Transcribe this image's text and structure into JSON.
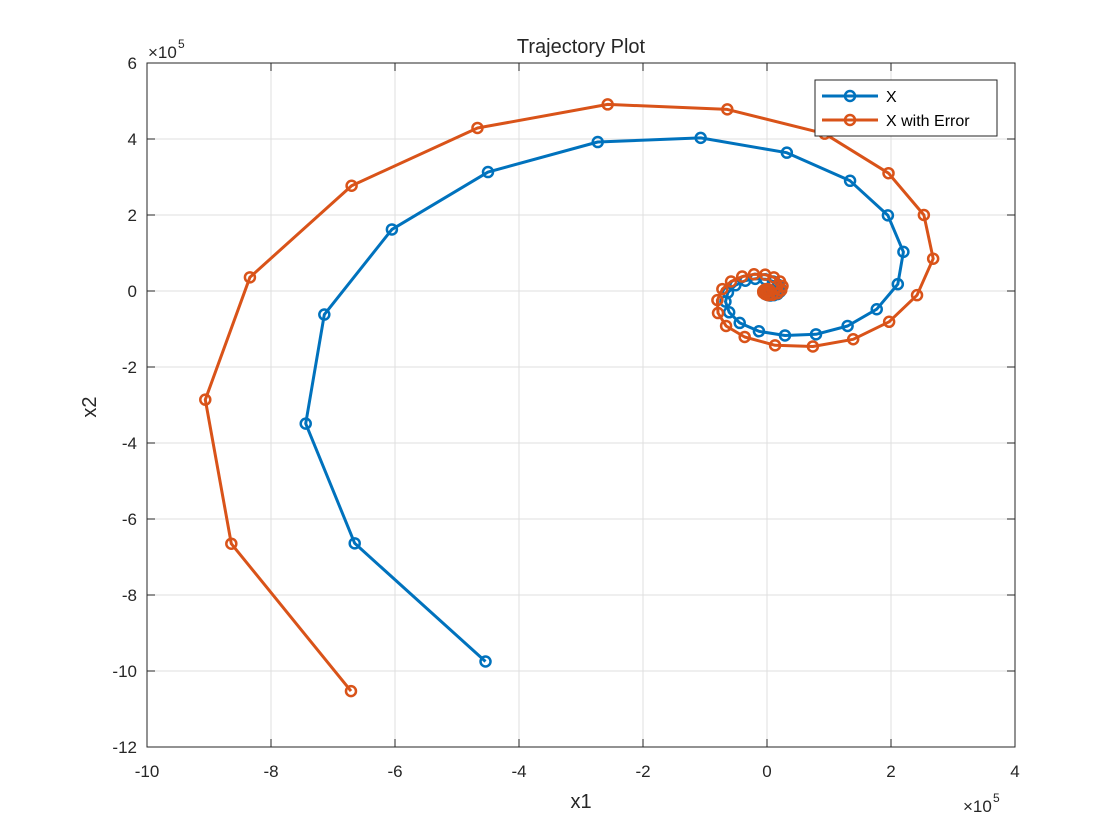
{
  "chart_data": {
    "type": "line",
    "title": "Trajectory Plot",
    "xlabel": "x1",
    "ylabel": "x2",
    "x_exponent_label": "×10",
    "x_exponent": "5",
    "y_exponent_label": "×10",
    "y_exponent": "5",
    "xlim": [
      -1000000,
      400000
    ],
    "ylim": [
      -1200000,
      600000
    ],
    "x_ticks": [
      -1000000,
      -800000,
      -600000,
      -400000,
      -200000,
      0,
      200000,
      400000
    ],
    "x_tick_labels": [
      "-10",
      "-8",
      "-6",
      "-4",
      "-2",
      "0",
      "2",
      "4"
    ],
    "y_ticks": [
      -1200000,
      -1000000,
      -800000,
      -600000,
      -400000,
      -200000,
      0,
      200000,
      400000,
      600000
    ],
    "y_tick_labels": [
      "-12",
      "-10",
      "-8",
      "-6",
      "-4",
      "-2",
      "0",
      "2",
      "4",
      "6"
    ],
    "grid": true,
    "legend_position": "top-right",
    "series": [
      {
        "name": "X",
        "color": "#0072BD",
        "marker": "circle",
        "points": [
          [
            -454000,
            -975000
          ],
          [
            -665000,
            -664000
          ],
          [
            -744000,
            -349000
          ],
          [
            -714000,
            -62000
          ],
          [
            -605000,
            162000
          ],
          [
            -450000,
            313000
          ],
          [
            -273000,
            392000
          ],
          [
            -107000,
            403000
          ],
          [
            32000,
            364000
          ],
          [
            134000,
            290000
          ],
          [
            195000,
            199000
          ],
          [
            220000,
            103000
          ],
          [
            211000,
            18000
          ],
          [
            177000,
            -48000
          ],
          [
            130000,
            -92000
          ],
          [
            79000,
            -114000
          ],
          [
            29000,
            -117000
          ],
          [
            -13000,
            -106000
          ],
          [
            -44000,
            -84000
          ],
          [
            -61000,
            -56000
          ],
          [
            -67000,
            -28000
          ],
          [
            -63000,
            -4000
          ],
          [
            -51000,
            15000
          ],
          [
            -35000,
            27000
          ],
          [
            -19000,
            32000
          ],
          [
            -3000,
            31000
          ],
          [
            10000,
            25000
          ],
          [
            18000,
            16000
          ],
          [
            22000,
            6000
          ],
          [
            21000,
            -2000
          ],
          [
            17000,
            -8000
          ],
          [
            11000,
            -11000
          ],
          [
            5000,
            -12000
          ],
          [
            0,
            -10000
          ],
          [
            -3000,
            -7000
          ],
          [
            -5000,
            -3000
          ],
          [
            -5000,
            0
          ],
          [
            -4000,
            2000
          ],
          [
            -2000,
            3000
          ],
          [
            0,
            3000
          ],
          [
            1000,
            2000
          ],
          [
            2000,
            1000
          ],
          [
            1000,
            0
          ]
        ]
      },
      {
        "name": "X with Error",
        "color": "#D95319",
        "marker": "circle",
        "points": [
          [
            -671000,
            -1053000
          ],
          [
            -864000,
            -665000
          ],
          [
            -906000,
            -286000
          ],
          [
            -834000,
            36000
          ],
          [
            -670000,
            277000
          ],
          [
            -467000,
            429000
          ],
          [
            -257000,
            491000
          ],
          [
            -64000,
            478000
          ],
          [
            93000,
            414000
          ],
          [
            196000,
            310000
          ],
          [
            253000,
            200000
          ],
          [
            268000,
            85000
          ],
          [
            242000,
            -11000
          ],
          [
            197000,
            -81000
          ],
          [
            139000,
            -127000
          ],
          [
            74000,
            -146000
          ],
          [
            13000,
            -143000
          ],
          [
            -36000,
            -121000
          ],
          [
            -66000,
            -92000
          ],
          [
            -79000,
            -58000
          ],
          [
            -80000,
            -24000
          ],
          [
            -72000,
            5000
          ],
          [
            -58000,
            25000
          ],
          [
            -40000,
            38000
          ],
          [
            -21000,
            44000
          ],
          [
            -3000,
            43000
          ],
          [
            11000,
            36000
          ],
          [
            21000,
            25000
          ],
          [
            25000,
            13000
          ],
          [
            23000,
            2000
          ],
          [
            17000,
            -6000
          ],
          [
            9000,
            -10000
          ],
          [
            2000,
            -11000
          ],
          [
            -3000,
            -8000
          ],
          [
            -6000,
            -4000
          ],
          [
            -6000,
            0
          ],
          [
            -4000,
            3000
          ],
          [
            -1000,
            5000
          ],
          [
            2000,
            5000
          ],
          [
            4000,
            3000
          ],
          [
            4000,
            0
          ],
          [
            2000,
            -2000
          ],
          [
            0,
            -1000
          ]
        ]
      }
    ]
  }
}
